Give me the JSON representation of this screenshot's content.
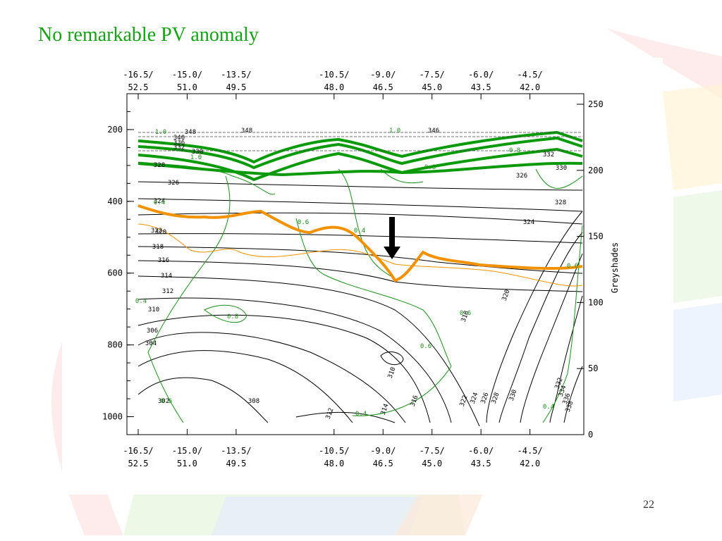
{
  "slide": {
    "title": "No remarkable PV anomaly",
    "page_number": "22"
  },
  "colors": {
    "title": "#13a313",
    "pv_contour": "#1a8f1a",
    "pv_thick": "#0a9a0a",
    "tropopause": "#f39200",
    "theta": "#000000"
  },
  "chart_data": {
    "type": "contour",
    "x_ticks": [
      {
        "x": 0,
        "lon": "-16.5/",
        "lat": "52.5"
      },
      {
        "x": 1,
        "lon": "-15.0/",
        "lat": "51.0"
      },
      {
        "x": 2,
        "lon": "-13.5/",
        "lat": "49.5"
      },
      {
        "x": 4,
        "lon": "-10.5/",
        "lat": "48.0"
      },
      {
        "x": 5,
        "lon": "-9.0/",
        "lat": "46.5"
      },
      {
        "x": 6,
        "lon": "-7.5/",
        "lat": "45.0"
      },
      {
        "x": 7,
        "lon": "-6.0/",
        "lat": "43.5"
      },
      {
        "x": 8,
        "lon": "-4.5/",
        "lat": "42.0"
      }
    ],
    "xlim": [
      0,
      9.1
    ],
    "y_left_ticks": [
      "200",
      "400",
      "600",
      "800",
      "1000"
    ],
    "y_left_values": [
      200,
      400,
      600,
      800,
      1000
    ],
    "ylim": [
      100,
      1050
    ],
    "y_right_ticks": [
      "0",
      "50",
      "100",
      "150",
      "200",
      "250"
    ],
    "y_right_values": [
      0,
      50,
      100,
      150,
      200,
      250
    ],
    "y_right_range": [
      0,
      258
    ],
    "y_right_label": "Greyshades",
    "theta_labels": [
      "348",
      "340",
      "336",
      "332",
      "330",
      "328",
      "326",
      "324",
      "322",
      "320",
      "318",
      "316",
      "314",
      "312",
      "310",
      "306",
      "304",
      "302",
      "308",
      "310",
      "312",
      "314",
      "316",
      "318",
      "320",
      "322",
      "324",
      "326",
      "328",
      "330",
      "332",
      "334",
      "336",
      "338",
      "332",
      "326",
      "324",
      "328",
      "330",
      "346",
      "348"
    ],
    "pv_labels": [
      "1.0",
      "0.4",
      "0.8",
      "0.4",
      "0.6",
      "0.8",
      "0.6",
      "0.4",
      "0.8",
      "0.6",
      "0.6",
      "0.4",
      "1.0",
      "0.6",
      "0.4",
      "1.0"
    ],
    "annotation": "arrow pointing to tropopause dip"
  }
}
